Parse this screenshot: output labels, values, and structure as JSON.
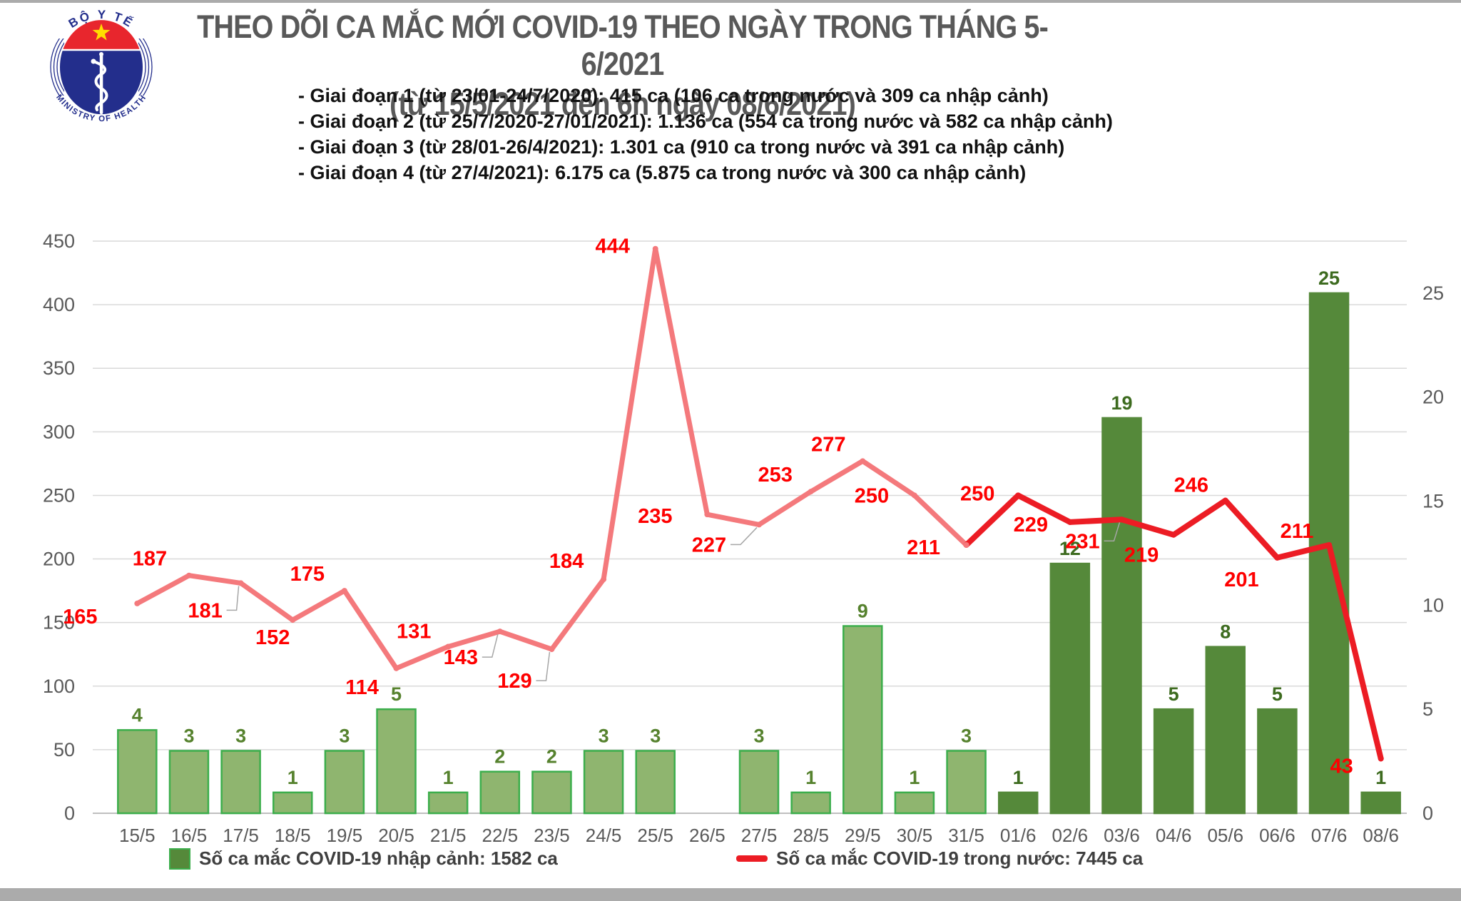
{
  "header": {
    "title": "THEO DÕI CA MẮC MỚI COVID-19 THEO NGÀY TRONG THÁNG 5-6/2021",
    "subtitle": "(từ 15/5/2021 đến 6h ngày 08/6/2021)",
    "logo": {
      "top_text": "BỘ Y TẾ",
      "bottom_text": "MINISTRY OF HEALTH"
    },
    "notes": [
      "- Giai đoạn 1 (từ 23/01-24/7/2020): 415 ca (106 ca trong nước và 309 ca nhập cảnh)",
      "- Giai đoạn 2 (từ 25/7/2020-27/01/2021): 1.136 ca (554 ca trong nước và 582 ca nhập cảnh)",
      "- Giai đoạn 3 (từ 28/01-26/4/2021): 1.301 ca (910 ca trong nước và 391 ca nhập cảnh)",
      "- Giai đoạn 4 (từ 27/4/2021): 6.175 ca (5.875 ca trong nước và 300 ca nhập cảnh)"
    ]
  },
  "chart_data": {
    "type": "combo_bar_line",
    "categories": [
      "15/5",
      "16/5",
      "17/5",
      "18/5",
      "19/5",
      "20/5",
      "21/5",
      "22/5",
      "23/5",
      "24/5",
      "25/5",
      "26/5",
      "27/5",
      "28/5",
      "29/5",
      "30/5",
      "31/5",
      "01/6",
      "02/6",
      "03/6",
      "04/6",
      "05/6",
      "06/6",
      "07/6",
      "08/6"
    ],
    "series": [
      {
        "name": "Số ca mắc COVID-19 nhập cảnh",
        "type": "bar",
        "axis": "right",
        "values": [
          4,
          3,
          3,
          1,
          3,
          5,
          1,
          2,
          2,
          3,
          3,
          null,
          3,
          1,
          9,
          1,
          3,
          1,
          12,
          19,
          5,
          8,
          5,
          25,
          1
        ]
      },
      {
        "name": "Số ca mắc COVID-19 trong nước",
        "type": "line",
        "axis": "left",
        "values": [
          165,
          187,
          181,
          152,
          175,
          114,
          131,
          143,
          129,
          184,
          444,
          235,
          227,
          253,
          277,
          250,
          211,
          250,
          229,
          231,
          219,
          246,
          201,
          211,
          43
        ]
      }
    ],
    "left_axis": {
      "min": 0,
      "max": 450,
      "step": 50,
      "ticks": [
        "0",
        "50",
        "100",
        "150",
        "200",
        "250",
        "300",
        "350",
        "400",
        "450"
      ]
    },
    "right_axis": {
      "ticks": [
        "0",
        "5",
        "10",
        "15",
        "20",
        "25"
      ],
      "scale_max": 27.5
    },
    "split_index": 17,
    "grid": true,
    "legend_position": "bottom"
  },
  "legend": [
    {
      "label": "Số ca mắc COVID-19 nhập cảnh: 1582 ca",
      "marker": "square"
    },
    {
      "label": "Số ca mắc COVID-19 trong nước: 7445 ca",
      "marker": "dash"
    }
  ],
  "colors": {
    "title": "#595959",
    "note_text": "#111111",
    "axis_text": "#595959",
    "grid": "#d9d9d9",
    "baseline": "#bfbfbf",
    "line_may": "#f4797c",
    "line_june": "#ec1c24",
    "line_label": "#fe0000",
    "bar_may_fill": "#8fb56f",
    "bar_may_border": "#3cae4c",
    "bar_june_fill": "#55893a",
    "bar_label_may": "#56822e",
    "bar_label_june": "#3d6b1f",
    "legend_text": "#3f3f3f",
    "leader": "#a6a6a6",
    "frame": "#ababab",
    "logo_blue": "#232e8c",
    "logo_red": "#e8262d",
    "logo_star": "#ffde00"
  }
}
